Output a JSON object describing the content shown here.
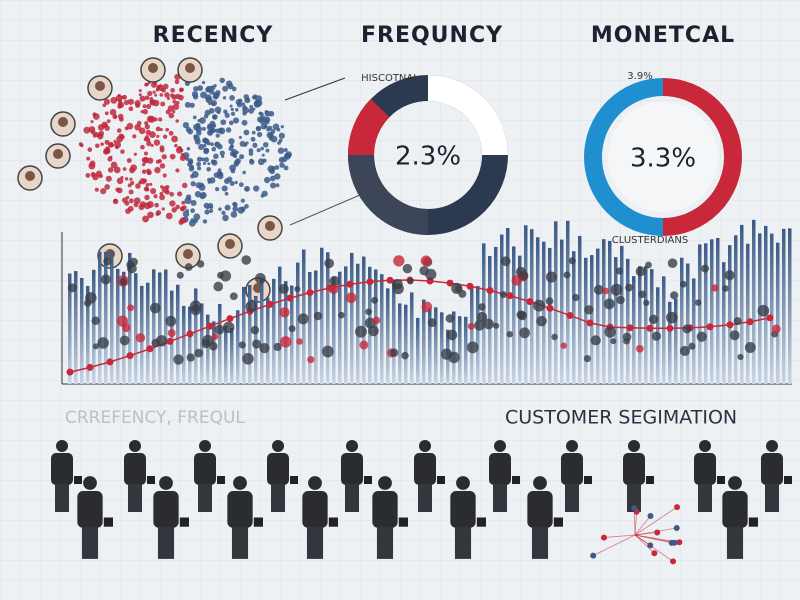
{
  "header": {
    "titles": [
      "RECENCY",
      "FREQUNCY",
      "MONETCAL"
    ]
  },
  "panels": {
    "left_donut": {
      "caption": "HISCOTNAL",
      "label": "2.3%"
    },
    "right_donut": {
      "caption": "3.9%",
      "label": "3.3%"
    }
  },
  "chart_area": {
    "cluster_label": "CLUSTERDIANS"
  },
  "footer": {
    "faded_title": "CRREFENCY, FREQUL",
    "title": "CUSTOMER SEGIMATION"
  }
}
